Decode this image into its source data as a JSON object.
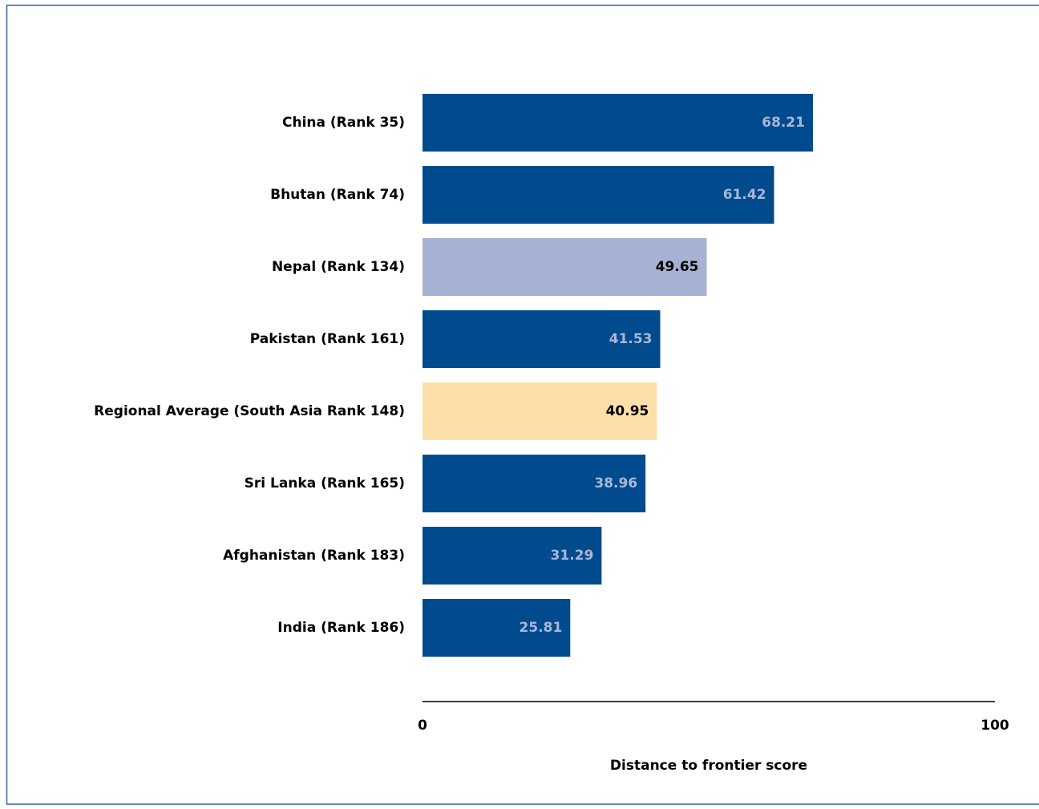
{
  "chart_data": {
    "type": "barh",
    "categories": [
      "China (Rank 35)",
      "Bhutan (Rank 74)",
      "Nepal (Rank 134)",
      "Pakistan (Rank 161)",
      "Regional Average (South Asia Rank 148)",
      "Sri Lanka (Rank 165)",
      "Afghanistan (Rank 183)",
      "India (Rank 186)"
    ],
    "values": [
      68.21,
      61.42,
      49.65,
      41.53,
      40.95,
      38.96,
      31.29,
      25.81
    ],
    "colors": [
      "#004b8d",
      "#004b8d",
      "#a6b1d4",
      "#004b8d",
      "#fde0a9",
      "#004b8d",
      "#004b8d",
      "#004b8d"
    ],
    "label_colors": [
      "#a9b6d8",
      "#a9b6d8",
      "#000000",
      "#a9b6d8",
      "#000000",
      "#a9b6d8",
      "#a9b6d8",
      "#a9b6d8"
    ],
    "xlabel": "Distance to frontier score",
    "xlim": [
      0,
      100
    ],
    "xticks": [
      0,
      100
    ]
  }
}
